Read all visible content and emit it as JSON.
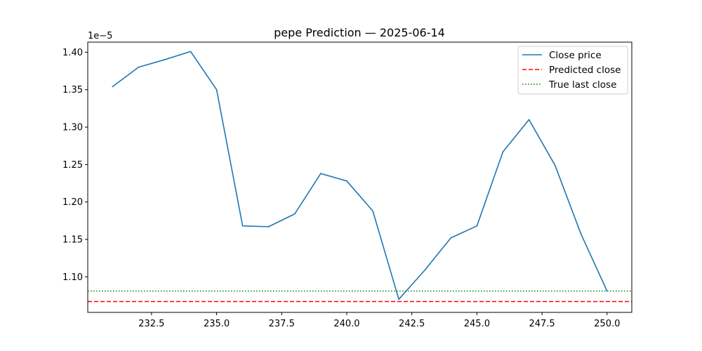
{
  "chart_data": {
    "type": "line",
    "title": "pepe Prediction — 2025-06-14",
    "xlabel": "",
    "ylabel": "",
    "y_offset_label": "1e−5",
    "xlim": [
      230.05,
      250.95
    ],
    "ylim": [
      1.0525,
      1.4135
    ],
    "x_ticks": [
      232.5,
      235.0,
      237.5,
      240.0,
      242.5,
      245.0,
      247.5,
      250.0
    ],
    "x_tick_labels": [
      "232.5",
      "235.0",
      "237.5",
      "240.0",
      "242.5",
      "245.0",
      "247.5",
      "250.0"
    ],
    "y_ticks": [
      1.1,
      1.15,
      1.2,
      1.25,
      1.3,
      1.35,
      1.4
    ],
    "y_tick_labels": [
      "1.10",
      "1.15",
      "1.20",
      "1.25",
      "1.30",
      "1.35",
      "1.40"
    ],
    "grid": false,
    "legend_position": "top-right",
    "series": [
      {
        "name": "Close price",
        "style": "solid",
        "color": "#1f77b4",
        "x": [
          231,
          232,
          233,
          234,
          235,
          236,
          237,
          238,
          239,
          240,
          241,
          242,
          243,
          244,
          245,
          246,
          247,
          248,
          249,
          250
        ],
        "values": [
          1.354,
          1.38,
          1.39,
          1.401,
          1.35,
          1.168,
          1.167,
          1.184,
          1.238,
          1.228,
          1.188,
          1.07,
          1.109,
          1.152,
          1.168,
          1.267,
          1.31,
          1.249,
          1.157,
          1.081
        ]
      }
    ],
    "hlines": [
      {
        "name": "Predicted close",
        "style": "dashed",
        "color": "#ff0000",
        "value": 1.067
      },
      {
        "name": "True last close",
        "style": "dotted",
        "color": "#008000",
        "value": 1.081
      }
    ]
  }
}
